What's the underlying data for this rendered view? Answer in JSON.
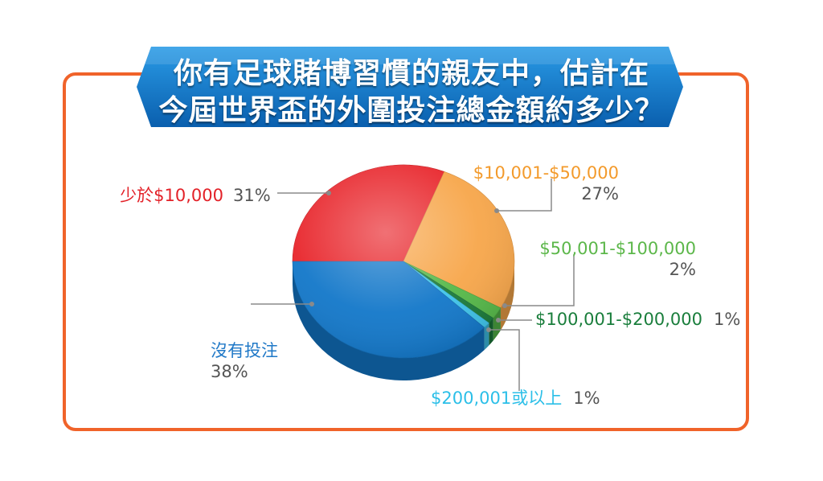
{
  "header": {
    "title_line1": "你有足球賭博習慣的親友中，估計在",
    "title_line2": "今屆世界盃的外圍投注總金額約多少？"
  },
  "colors": {
    "frame": "#f0632a",
    "banner": "#0a6fbf"
  },
  "chart_data": {
    "type": "pie",
    "title": "你有足球賭博習慣的親友中，估計在今屆世界盃的外圍投注總金額約多少？",
    "slices": [
      {
        "label": "少於$10,000",
        "value": 31,
        "value_label": "31%",
        "color": "#e8242a",
        "label_color": "#e32128"
      },
      {
        "label": "$10,001-$50,000",
        "value": 27,
        "value_label": "27%",
        "color": "#f7a64a",
        "label_color": "#f39a2b"
      },
      {
        "label": "$50,001-$100,000",
        "value": 2,
        "value_label": "2%",
        "color": "#55b848",
        "label_color": "#5cb74a"
      },
      {
        "label": "$100,001-$200,000",
        "value": 1,
        "value_label": "1%",
        "color": "#1a7a3a",
        "label_color": "#1a7e3c"
      },
      {
        "label": "$200,001或以上",
        "value": 1,
        "value_label": "1%",
        "color": "#3ec3ea",
        "label_color": "#2bbfe8"
      },
      {
        "label": "沒有投注",
        "value": 38,
        "value_label": "38%",
        "color": "#1277c9",
        "label_color": "#1f78c7"
      }
    ]
  }
}
